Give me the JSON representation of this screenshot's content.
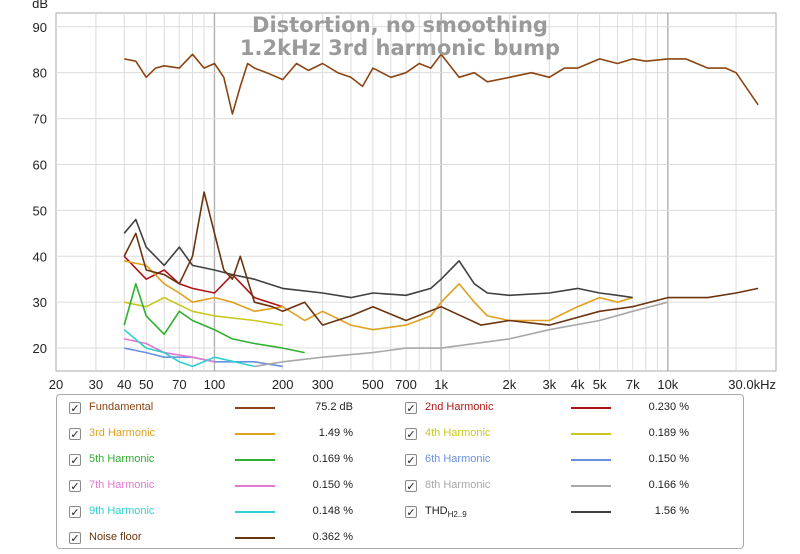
{
  "chart_data": {
    "type": "line",
    "title": "Distortion, no smoothing",
    "subtitle": "1.2kHz 3rd harmonic bump",
    "ylabel": "dB",
    "xlabel": "",
    "x_scale": "log",
    "xlim": [
      20,
      30000
    ],
    "ylim": [
      15,
      93
    ],
    "grid": true,
    "x_ticks": [
      {
        "value": 20,
        "label": "20"
      },
      {
        "value": 30,
        "label": "30"
      },
      {
        "value": 40,
        "label": "40"
      },
      {
        "value": 50,
        "label": "50"
      },
      {
        "value": 70,
        "label": "70"
      },
      {
        "value": 100,
        "label": "100"
      },
      {
        "value": 200,
        "label": "200"
      },
      {
        "value": 300,
        "label": "300"
      },
      {
        "value": 500,
        "label": "500"
      },
      {
        "value": 700,
        "label": "700"
      },
      {
        "value": 1000,
        "label": "1k"
      },
      {
        "value": 2000,
        "label": "2k"
      },
      {
        "value": 3000,
        "label": "3k"
      },
      {
        "value": 4000,
        "label": "4k"
      },
      {
        "value": 5000,
        "label": "5k"
      },
      {
        "value": 7000,
        "label": "7k"
      },
      {
        "value": 10000,
        "label": "10k"
      },
      {
        "value": 30000,
        "label": "30.0kHz"
      }
    ],
    "y_ticks": [
      {
        "value": 20,
        "label": "20"
      },
      {
        "value": 30,
        "label": "30"
      },
      {
        "value": 40,
        "label": "40"
      },
      {
        "value": 50,
        "label": "50"
      },
      {
        "value": 60,
        "label": "60"
      },
      {
        "value": 70,
        "label": "70"
      },
      {
        "value": 80,
        "label": "80"
      },
      {
        "value": 90,
        "label": "90"
      }
    ],
    "series": [
      {
        "name": "Fundamental",
        "color": "#8b4513",
        "x": [
          40,
          45,
          50,
          55,
          60,
          70,
          80,
          90,
          100,
          110,
          120,
          130,
          140,
          150,
          170,
          200,
          230,
          260,
          300,
          350,
          400,
          450,
          500,
          600,
          700,
          800,
          900,
          1000,
          1200,
          1400,
          1600,
          2000,
          2500,
          3000,
          3500,
          4000,
          5000,
          6000,
          7000,
          8000,
          10000,
          12000,
          15000,
          18000,
          20000,
          25000
        ],
        "y": [
          83,
          82.5,
          79,
          81,
          81.5,
          81,
          84,
          81,
          82,
          79,
          71,
          77,
          82,
          81,
          80,
          78.5,
          82,
          80.5,
          82,
          80,
          79,
          77,
          81,
          79,
          80,
          82,
          81,
          84,
          79,
          80,
          78,
          79,
          80,
          79,
          81,
          81,
          83,
          82,
          83,
          82.5,
          83,
          83,
          81,
          81,
          80,
          73
        ]
      },
      {
        "name": "2nd Harmonic",
        "color": "#b01515",
        "x": [
          40,
          50,
          60,
          70,
          80,
          100,
          120,
          150,
          200
        ],
        "y": [
          40,
          35,
          37,
          34,
          33,
          32,
          36,
          31,
          29
        ]
      },
      {
        "name": "3rd Harmonic",
        "color": "#e0a020",
        "x": [
          40,
          50,
          60,
          70,
          80,
          100,
          120,
          150,
          200,
          250,
          300,
          400,
          500,
          700,
          900,
          1000,
          1200,
          1400,
          1600,
          2000,
          3000,
          4000,
          5000,
          6000,
          7000
        ],
        "y": [
          39,
          38,
          34,
          32,
          30,
          31,
          30,
          28,
          29,
          26,
          28,
          25,
          24,
          25,
          27,
          30,
          34,
          30,
          27,
          26,
          26,
          29,
          31,
          30,
          31
        ]
      },
      {
        "name": "4th Harmonic",
        "color": "#c8c820",
        "x": [
          40,
          50,
          60,
          80,
          100,
          150,
          200
        ],
        "y": [
          30,
          29,
          31,
          28,
          27,
          26,
          25
        ]
      },
      {
        "name": "5th Harmonic",
        "color": "#30b030",
        "x": [
          40,
          45,
          50,
          60,
          70,
          80,
          100,
          120,
          150,
          200,
          250
        ],
        "y": [
          25,
          34,
          27,
          23,
          28,
          26,
          24,
          22,
          21,
          20,
          19
        ]
      },
      {
        "name": "6th Harmonic",
        "color": "#6a90e0",
        "x": [
          40,
          50,
          60,
          80,
          100,
          150,
          200
        ],
        "y": [
          20,
          19,
          18,
          18,
          17,
          17,
          16
        ]
      },
      {
        "name": "7th Harmonic",
        "color": "#e07ad0",
        "x": [
          40,
          50,
          60,
          80,
          100
        ],
        "y": [
          22,
          21,
          19,
          18,
          17
        ]
      },
      {
        "name": "8th Harmonic",
        "color": "#a8a8a8",
        "x": [
          150,
          200,
          300,
          500,
          700,
          1000,
          2000,
          3000,
          5000,
          7000,
          10000
        ],
        "y": [
          16,
          17,
          18,
          19,
          20,
          20,
          22,
          24,
          26,
          28,
          30
        ]
      },
      {
        "name": "9th Harmonic",
        "color": "#30d0d0",
        "x": [
          40,
          50,
          60,
          70,
          80,
          100,
          150
        ],
        "y": [
          24,
          20,
          19,
          17,
          16,
          18,
          16
        ]
      },
      {
        "name": "THD H2..9",
        "color": "#404040",
        "x": [
          40,
          45,
          50,
          60,
          70,
          80,
          100,
          120,
          150,
          200,
          300,
          400,
          500,
          700,
          900,
          1000,
          1200,
          1400,
          1600,
          2000,
          3000,
          4000,
          5000,
          6000,
          7000
        ],
        "y": [
          45,
          48,
          42,
          38,
          42,
          38,
          37,
          36,
          35,
          33,
          32,
          31,
          32,
          31.5,
          33,
          35,
          39,
          34,
          32,
          31.5,
          32,
          33,
          32,
          31.5,
          31
        ]
      },
      {
        "name": "Noise floor",
        "color": "#6b3410",
        "x": [
          40,
          45,
          50,
          60,
          70,
          80,
          90,
          100,
          110,
          120,
          130,
          150,
          180,
          200,
          250,
          300,
          400,
          500,
          700,
          1000,
          1500,
          2000,
          3000,
          5000,
          7000,
          10000,
          15000,
          20000,
          25000
        ],
        "y": [
          40,
          45,
          37,
          36,
          34,
          40,
          54,
          45,
          37,
          35,
          40,
          30,
          29,
          28,
          30,
          25,
          27,
          29,
          26,
          29,
          25,
          26,
          25,
          28,
          29,
          31,
          31,
          32,
          33
        ]
      }
    ]
  },
  "legend": {
    "rows": [
      [
        {
          "name": "Fundamental",
          "color": "#8b4513",
          "value": "75.2 dB"
        },
        {
          "name": "2nd Harmonic",
          "color": "#b01515",
          "value": "0.230 %"
        }
      ],
      [
        {
          "name": "3rd Harmonic",
          "color": "#e0a020",
          "value": "1.49 %"
        },
        {
          "name": "4th Harmonic",
          "color": "#c8c820",
          "value": "0.189 %"
        }
      ],
      [
        {
          "name": "5th Harmonic",
          "color": "#30b030",
          "value": "0.169 %"
        },
        {
          "name": "6th Harmonic",
          "color": "#6a90e0",
          "value": "0.150 %"
        }
      ],
      [
        {
          "name": "7th Harmonic",
          "color": "#e07ad0",
          "value": "0.150 %"
        },
        {
          "name": "8th Harmonic",
          "color": "#a8a8a8",
          "value": "0.166 %"
        }
      ],
      [
        {
          "name": "9th Harmonic",
          "color": "#30d0d0",
          "value": "0.148 %"
        },
        {
          "name": "THD",
          "sub": "H2..9",
          "color": "#404040",
          "value": "1.56 %",
          "text_color": "#222222"
        }
      ],
      [
        {
          "name": "Noise floor",
          "color": "#6b3410",
          "value": "0.362 %"
        }
      ]
    ],
    "check_mark": "✓"
  }
}
